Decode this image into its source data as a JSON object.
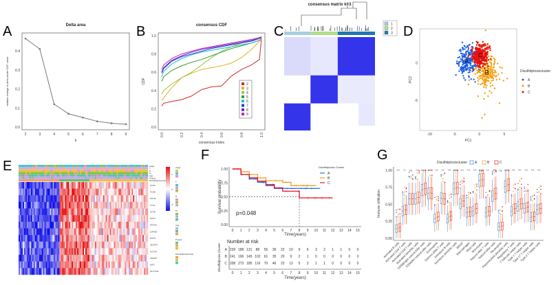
{
  "panels": {
    "A": "A",
    "B": "B",
    "C": "C",
    "D": "D",
    "E": "E",
    "F": "F",
    "G": "G"
  },
  "chart_data": [
    {
      "id": "A",
      "type": "line",
      "title": "Delta area",
      "xlabel": "k",
      "ylabel": "relative change in area under CDF curve",
      "x": [
        2,
        3,
        4,
        5,
        6,
        7,
        8,
        9
      ],
      "values": [
        0.465,
        0.41,
        0.12,
        0.07,
        0.05,
        0.03,
        0.02,
        0.015
      ],
      "xticks": [
        "2",
        "3",
        "4",
        "5",
        "6",
        "7",
        "8",
        "9"
      ],
      "yticks": [
        "0.0",
        "0.1",
        "0.2",
        "0.3",
        "0.4"
      ],
      "ylim": [
        0,
        0.48
      ],
      "color": "#777777"
    },
    {
      "id": "B",
      "type": "line",
      "title": "consensus CDF",
      "xlabel": "consensus index",
      "ylabel": "CDF",
      "xlim": [
        0,
        1
      ],
      "ylim": [
        0,
        1
      ],
      "xticks": [
        "0.0",
        "0.2",
        "0.4",
        "0.6",
        "0.8",
        "1.0"
      ],
      "yticks": [
        "0.0",
        "0.2",
        "0.4",
        "0.6",
        "0.8",
        "1.0"
      ],
      "legend": "right",
      "x": [
        0,
        0.02,
        0.1,
        0.2,
        0.3,
        0.4,
        0.5,
        0.6,
        0.7,
        0.8,
        0.9,
        0.98,
        1.0
      ],
      "series": [
        {
          "name": "2",
          "color": "#d62728",
          "values": [
            0.23,
            0.26,
            0.28,
            0.3,
            0.34,
            0.41,
            0.44,
            0.45,
            0.56,
            0.63,
            0.68,
            0.74,
            0.97
          ]
        },
        {
          "name": "3",
          "color": "#e8b01f",
          "values": [
            0.29,
            0.32,
            0.43,
            0.54,
            0.59,
            0.63,
            0.65,
            0.67,
            0.7,
            0.76,
            0.85,
            0.94,
            0.96
          ]
        },
        {
          "name": "4",
          "color": "#9bc53d",
          "values": [
            0.36,
            0.4,
            0.47,
            0.54,
            0.6,
            0.68,
            0.76,
            0.83,
            0.88,
            0.92,
            0.95,
            0.97,
            0.98
          ]
        },
        {
          "name": "5",
          "color": "#2ca02c",
          "values": [
            0.5,
            0.55,
            0.62,
            0.67,
            0.71,
            0.74,
            0.78,
            0.82,
            0.86,
            0.89,
            0.92,
            0.95,
            0.97
          ]
        },
        {
          "name": "6",
          "color": "#17becf",
          "values": [
            0.55,
            0.61,
            0.69,
            0.75,
            0.79,
            0.82,
            0.84,
            0.86,
            0.88,
            0.9,
            0.92,
            0.95,
            0.97
          ]
        },
        {
          "name": "7",
          "color": "#1f3fd6",
          "values": [
            0.59,
            0.64,
            0.72,
            0.77,
            0.8,
            0.83,
            0.86,
            0.88,
            0.9,
            0.92,
            0.94,
            0.97,
            0.98
          ]
        },
        {
          "name": "8",
          "color": "#6a1fc9",
          "values": [
            0.6,
            0.65,
            0.73,
            0.78,
            0.82,
            0.85,
            0.87,
            0.89,
            0.91,
            0.93,
            0.95,
            0.97,
            0.99
          ]
        },
        {
          "name": "9",
          "color": "#c026a8",
          "values": [
            0.63,
            0.68,
            0.75,
            0.8,
            0.83,
            0.86,
            0.88,
            0.9,
            0.92,
            0.94,
            0.96,
            0.98,
            0.99
          ]
        }
      ]
    },
    {
      "id": "C",
      "type": "heatmap",
      "title": "consensus matrix k=3",
      "legend": [
        {
          "name": "1",
          "color": "#a6cee3"
        },
        {
          "name": "2",
          "color": "#b2df8a"
        },
        {
          "name": "3",
          "color": "#1f78b4"
        }
      ]
    },
    {
      "id": "D",
      "type": "scatter",
      "xlabel": "PC1",
      "ylabel": "PC2",
      "xlim": [
        -12,
        7.5
      ],
      "ylim": [
        -9,
        4.5
      ],
      "xticks": [
        "-10",
        "-5",
        "0",
        "5"
      ],
      "yticks": [
        "-5",
        "0"
      ],
      "legend_title": "Disulfidptosiscluster",
      "series": [
        {
          "name": "A",
          "color": "#1f5fe0",
          "center": [
            -2.5,
            0.2
          ]
        },
        {
          "name": "B",
          "color": "#f5a00f",
          "center": [
            1.5,
            -1.3
          ]
        },
        {
          "name": "C",
          "color": "#e8100c",
          "center": [
            0.2,
            1.0
          ]
        }
      ]
    },
    {
      "id": "E",
      "type": "heatmap",
      "genes": [
        "FLNA",
        "FLNB",
        "MYH9",
        "TLN1",
        "ACTB",
        "MYL6",
        "MYH10",
        "CAPZB",
        "DSTN",
        "IQGAP1",
        "ACTN4",
        "CD2AP",
        "INF2",
        "SLC7A11"
      ],
      "annotations": [
        "stage",
        "T",
        "N",
        "M",
        "Age",
        "Project",
        "Disulfidptosiscluster"
      ],
      "color_scale": [
        "#1010e0",
        "#ffffff",
        "#e81010"
      ],
      "scale_ticks": [
        "2",
        "0",
        "-2"
      ]
    },
    {
      "id": "F",
      "type": "line",
      "legend_title": "Disulfidptosis Cluster",
      "ylabel": "Survival probability",
      "xlabel": "Time(years)",
      "pvalue": "p=0.048",
      "xticks": [
        "0",
        "1",
        "2",
        "3",
        "4",
        "5",
        "6",
        "7",
        "8",
        "9",
        "10",
        "11",
        "12",
        "13",
        "14",
        "15"
      ],
      "yticks": [
        "0.00",
        "0.25",
        "0.50",
        "0.75",
        "1.00"
      ],
      "series": [
        {
          "name": "A",
          "color": "#1f6fe0",
          "time": [
            0,
            1,
            2,
            3,
            4,
            5,
            6,
            10.5
          ],
          "surv": [
            1,
            0.9,
            0.82,
            0.76,
            0.7,
            0.65,
            0.65,
            0.65
          ]
        },
        {
          "name": "B",
          "color": "#f0a020",
          "time": [
            0,
            1,
            2,
            3,
            4,
            5,
            6,
            7,
            10
          ],
          "surv": [
            1,
            0.95,
            0.9,
            0.84,
            0.79,
            0.79,
            0.76,
            0.7,
            0.7
          ]
        },
        {
          "name": "C",
          "color": "#e8102a",
          "time": [
            0,
            1,
            2,
            3,
            4,
            5,
            6,
            8,
            12
          ],
          "surv": [
            1,
            0.9,
            0.84,
            0.78,
            0.72,
            0.66,
            0.6,
            0.48,
            0.48
          ]
        }
      ],
      "risk_table": {
        "title": "Number at risk",
        "ylabel": "Disulfidptosis Cluster",
        "rows": [
          {
            "name": "A",
            "values": [
              "239",
              "188",
              "131",
              "88",
              "56",
              "35",
              "22",
              "10",
              "9",
              "6",
              "3",
              "2",
              "1",
              "1",
              "0",
              "0"
            ]
          },
          {
            "name": "B",
            "values": [
              "241",
              "196",
              "145",
              "102",
              "61",
              "35",
              "20",
              "9",
              "2",
              "1",
              "0",
              "0",
              "0",
              "0",
              "0",
              "0"
            ]
          },
          {
            "name": "C",
            "values": [
              "338",
              "273",
              "185",
              "116",
              "70",
              "46",
              "22",
              "13",
              "5",
              "3",
              "1",
              "1",
              "0",
              "0",
              "0",
              "0"
            ]
          }
        ]
      }
    },
    {
      "id": "G",
      "type": "box",
      "legend_title": "Disulfidptosiscluster",
      "ylabel": "Immune infiltration",
      "ylim": [
        0,
        1.02
      ],
      "yticks": [
        "0.00",
        "0.25",
        "0.50",
        "0.75",
        "1.00"
      ],
      "series": [
        {
          "name": "A",
          "color": "#3b7fe0"
        },
        {
          "name": "B",
          "color": "#f0a030"
        },
        {
          "name": "C",
          "color": "#e02020"
        }
      ],
      "categories": [
        "Activated B cells",
        "Activated CD4 T cells",
        "Activated CD8 T cells",
        "Activated dendritic cells",
        "CD56bright natural killer cells",
        "CD56dim natural killer cells",
        "Eosinophils",
        "Gamma delta T cells",
        "Immature  B cells",
        "Immature dendritic cells",
        "MDSC",
        "Macrophages",
        "Mast cells",
        "Monocytes",
        "Natural killer T cells",
        "Natural killer cells",
        "Neutrophils",
        "Plasmacytoid dendritic cells",
        "Regulatory T cells",
        "T follicular helper cells",
        "Type 1 T helper cells",
        "Type 17 T helper cells",
        "Type 2 T helper cells"
      ],
      "significance": [
        "***",
        "**",
        "ns",
        "***",
        "**",
        "***",
        "***",
        "***",
        "***",
        "***",
        "***",
        "***",
        "***",
        "ns",
        "***",
        "***",
        "ns",
        "***",
        "***",
        "***",
        "***",
        "***",
        "***"
      ],
      "medians": [
        [
          0.14,
          0.15,
          0.16
        ],
        [
          0.4,
          0.42,
          0.42
        ],
        [
          0.58,
          0.58,
          0.58
        ],
        [
          0.58,
          0.6,
          0.6
        ],
        [
          0.71,
          0.72,
          0.73
        ],
        [
          0.66,
          0.67,
          0.66
        ],
        [
          0.29,
          0.31,
          0.32
        ],
        [
          0.59,
          0.58,
          0.58
        ],
        [
          0.29,
          0.32,
          0.33
        ],
        [
          0.73,
          0.74,
          0.74
        ],
        [
          0.51,
          0.55,
          0.55
        ],
        [
          0.38,
          0.39,
          0.39
        ],
        [
          0.4,
          0.43,
          0.44
        ],
        [
          0.85,
          0.86,
          0.86
        ],
        [
          0.38,
          0.4,
          0.4
        ],
        [
          0.62,
          0.65,
          0.66
        ],
        [
          0.17,
          0.18,
          0.18
        ],
        [
          0.76,
          0.78,
          0.79
        ],
        [
          0.4,
          0.43,
          0.44
        ],
        [
          0.47,
          0.5,
          0.51
        ],
        [
          0.44,
          0.45,
          0.46
        ],
        [
          0.31,
          0.32,
          0.32
        ],
        [
          0.42,
          0.43,
          0.44
        ]
      ]
    }
  ]
}
